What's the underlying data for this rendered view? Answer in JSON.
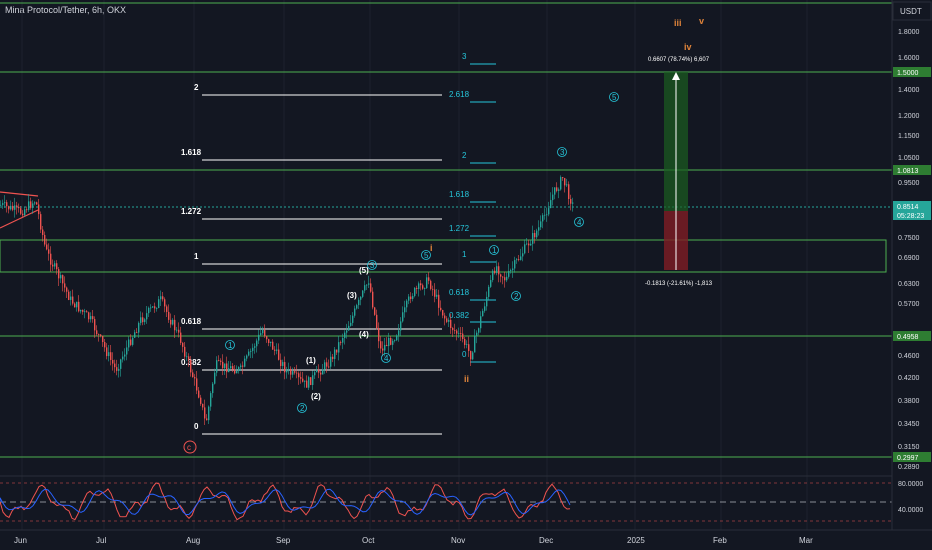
{
  "header": {
    "title": "Mina Protocol/Tether, 6h, OKX"
  },
  "price_scale": {
    "currency": "USDT",
    "ticks": [
      "1.8000",
      "1.6000",
      "1.4000",
      "1.2000",
      "1.1500",
      "1.0500",
      "0.9500",
      "0.7500",
      "0.6900",
      "0.6300",
      "0.5700",
      "0.4600",
      "0.4200",
      "0.3800",
      "0.3450",
      "0.3150",
      "0.2890"
    ],
    "badges": [
      {
        "label": "1.5000",
        "bg": "#26a69a",
        "fg": "#ffffff"
      },
      {
        "label": "1.0813",
        "bg": "#26a69a",
        "fg": "#ffffff"
      },
      {
        "label": "0.8514",
        "bg": "#26a69a",
        "fg": "#ffffff"
      },
      {
        "label": "05:28:23",
        "bg": "#26a69a",
        "fg": "#ffffff"
      },
      {
        "label": "0.4958",
        "bg": "#26a69a",
        "fg": "#ffffff"
      },
      {
        "label": "0.2997",
        "bg": "#26a69a",
        "fg": "#ffffff"
      }
    ]
  },
  "rsi_scale": [
    "80.0000",
    "40.0000"
  ],
  "time_axis": [
    "Jun",
    "Jul",
    "Aug",
    "Sep",
    "Oct",
    "Nov",
    "Dec",
    "2025",
    "Feb",
    "Mar"
  ],
  "fib_white": [
    "2",
    "1.618",
    "1.272",
    "1",
    "0.618",
    "0.382",
    "0"
  ],
  "fib_teal": [
    "3",
    "2.618",
    "2",
    "1.618",
    "1.272",
    "1",
    "0.618",
    "0.382",
    "0"
  ],
  "waves_white": [
    "(1)",
    "(2)",
    "(3)",
    "(4)",
    "(5)"
  ],
  "waves_teal": [
    "1",
    "2",
    "3",
    "4",
    "5"
  ],
  "waves_teal_b": [
    "1",
    "2",
    "3",
    "4",
    "5"
  ],
  "waves_orange": [
    "i",
    "ii",
    "iii",
    "iv",
    "v"
  ],
  "circle_c": "c",
  "position": {
    "target_text": "0.6607 (78.74%) 6,607",
    "stop_text": "-0.1813 (-21.61%) -1,813"
  },
  "colors": {
    "bg": "#131722",
    "green_line": "#4caf50",
    "teal": "#26c6da",
    "orange": "#e0843a",
    "red": "#ef5350",
    "rsi_blue": "#2962ff"
  }
}
